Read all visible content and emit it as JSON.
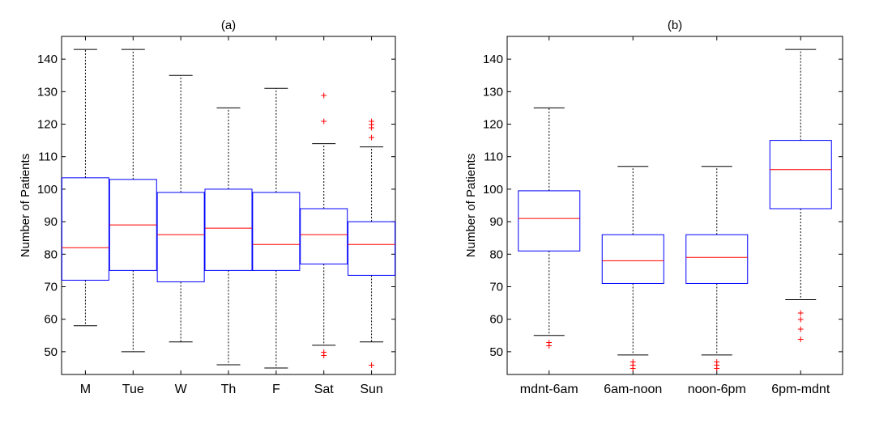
{
  "chart_data": [
    {
      "type": "box",
      "title": "(a)",
      "xlabel": "",
      "ylabel": "Number of Patients",
      "ylim": [
        43,
        147
      ],
      "yticks": [
        50,
        60,
        70,
        80,
        90,
        100,
        110,
        120,
        130,
        140
      ],
      "grid": false,
      "box_color": "#0000ff",
      "median_color": "#ff0000",
      "whisker_color": "#000000",
      "outlier_color": "#ff0000",
      "categories": [
        "M",
        "Tue",
        "W",
        "Th",
        "F",
        "Sat",
        "Sun"
      ],
      "boxes": [
        {
          "label": "M",
          "whisker_low": 58,
          "q1": 72,
          "median": 82,
          "q3": 103.5,
          "whisker_high": 143,
          "outliers": []
        },
        {
          "label": "Tue",
          "whisker_low": 50,
          "q1": 75,
          "median": 89,
          "q3": 103,
          "whisker_high": 143,
          "outliers": []
        },
        {
          "label": "W",
          "whisker_low": 53,
          "q1": 71.5,
          "median": 86,
          "q3": 99,
          "whisker_high": 135,
          "outliers": []
        },
        {
          "label": "Th",
          "whisker_low": 46,
          "q1": 75,
          "median": 88,
          "q3": 100,
          "whisker_high": 125,
          "outliers": []
        },
        {
          "label": "F",
          "whisker_low": 45,
          "q1": 75,
          "median": 83,
          "q3": 99,
          "whisker_high": 131,
          "outliers": []
        },
        {
          "label": "Sat",
          "whisker_low": 52,
          "q1": 77,
          "median": 86,
          "q3": 94,
          "whisker_high": 114,
          "outliers": [
            129,
            121,
            50,
            49
          ]
        },
        {
          "label": "Sun",
          "whisker_low": 53,
          "q1": 73.5,
          "median": 83,
          "q3": 90,
          "whisker_high": 113,
          "outliers": [
            121,
            120,
            119,
            116,
            46
          ]
        }
      ]
    },
    {
      "type": "box",
      "title": "(b)",
      "xlabel": "",
      "ylabel": "Number of Patients",
      "ylim": [
        43,
        147
      ],
      "yticks": [
        50,
        60,
        70,
        80,
        90,
        100,
        110,
        120,
        130,
        140
      ],
      "grid": false,
      "box_color": "#0000ff",
      "median_color": "#ff0000",
      "whisker_color": "#000000",
      "outlier_color": "#ff0000",
      "categories": [
        "mdnt-6am",
        "6am-noon",
        "noon-6pm",
        "6pm-mdnt"
      ],
      "boxes": [
        {
          "label": "mdnt-6am",
          "whisker_low": 55,
          "q1": 81,
          "median": 91,
          "q3": 99.5,
          "whisker_high": 125,
          "outliers": [
            53,
            52
          ]
        },
        {
          "label": "6am-noon",
          "whisker_low": 49,
          "q1": 71,
          "median": 78,
          "q3": 86,
          "whisker_high": 107,
          "outliers": [
            47,
            46,
            45
          ]
        },
        {
          "label": "noon-6pm",
          "whisker_low": 49,
          "q1": 71,
          "median": 79,
          "q3": 86,
          "whisker_high": 107,
          "outliers": [
            47,
            46,
            45
          ]
        },
        {
          "label": "6pm-mdnt",
          "whisker_low": 66,
          "q1": 94,
          "median": 106,
          "q3": 115,
          "whisker_high": 143,
          "outliers": [
            62,
            60,
            57,
            54
          ]
        }
      ]
    }
  ]
}
